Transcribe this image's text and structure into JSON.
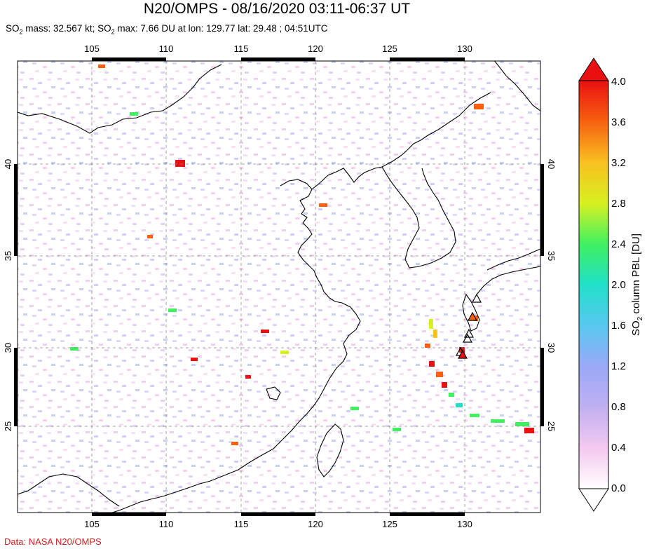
{
  "header": {
    "title": "N20/OMPS - 08/16/2020 03:11-06:37 UT",
    "subtitle_parts": {
      "s1": "SO",
      "s1_sub": "2",
      "s2": " mass: 32.567 kt; SO",
      "s2_sub": "2",
      "s3": " max: 7.66 DU at lon: 129.77 lat: 29.48 ; 04:51UTC"
    }
  },
  "credit": "Data: NASA N20/OMPS",
  "map": {
    "lon_ticks": [
      "105",
      "110",
      "115",
      "120",
      "125",
      "130"
    ],
    "lat_ticks": [
      "40",
      "35",
      "30",
      "25"
    ],
    "lon_range": [
      100,
      135
    ],
    "lat_range": [
      20,
      45
    ]
  },
  "colorbar": {
    "label": "SO2 column PBL [DU]",
    "label_main": "SO",
    "label_sub": "2",
    "label_rest": " column PBL [DU]",
    "ticks": [
      "4.0",
      "3.6",
      "3.2",
      "2.8",
      "2.4",
      "2.0",
      "1.6",
      "1.2",
      "0.8",
      "0.4",
      "0.0"
    ],
    "colors": [
      "#ffffff",
      "#f4c8f0",
      "#c0b0f0",
      "#9aa8f8",
      "#58c8f0",
      "#20e0c8",
      "#40f060",
      "#d8f020",
      "#f8c020",
      "#f86010",
      "#e81010"
    ]
  },
  "volcano_markers": 6
}
